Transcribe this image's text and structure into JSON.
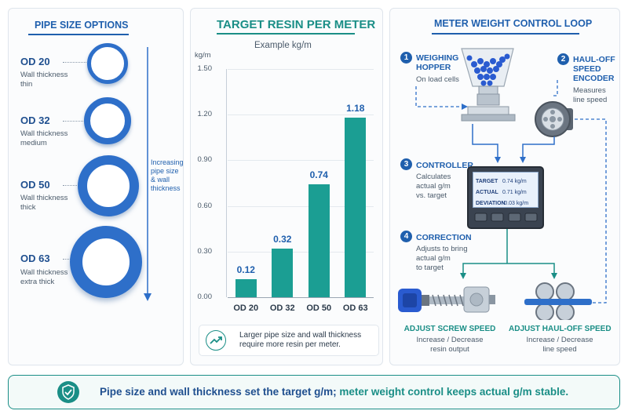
{
  "left_panel": {
    "title": "PIPE SIZE OPTIONS",
    "pipes": [
      {
        "od": "OD 20",
        "wall_label": "Wall thickness",
        "wall_value": "thin"
      },
      {
        "od": "OD 32",
        "wall_label": "Wall thickness",
        "wall_value": "medium"
      },
      {
        "od": "OD 50",
        "wall_label": "Wall thickness",
        "wall_value": "thick"
      },
      {
        "od": "OD 63",
        "wall_label": "Wall thickness",
        "wall_value": "extra thick"
      }
    ],
    "arrow_caption": [
      "Increasing",
      "pipe size",
      "& wall",
      "thickness"
    ]
  },
  "chart_panel": {
    "title": "TARGET RESIN PER METER",
    "note": [
      "Larger pipe size and wall thickness",
      "require more resin per meter."
    ],
    "icon": "trend-up-icon"
  },
  "chart_data": {
    "type": "bar",
    "title": "TARGET RESIN PER METER",
    "subtitle": "Example kg/m",
    "ylabel": "kg/m",
    "categories": [
      "OD 20",
      "OD 32",
      "OD 50",
      "OD 63"
    ],
    "values": [
      0.12,
      0.32,
      0.74,
      1.18
    ],
    "value_labels": [
      "0.12",
      "0.32",
      "0.74",
      "1.18"
    ],
    "yticks": [
      "0.00",
      "0.30",
      "0.60",
      "0.90",
      "1.20",
      "1.50"
    ],
    "ylim": [
      0,
      1.5
    ],
    "grid": true,
    "bar_color": "#1b9e93"
  },
  "loop_panel": {
    "title": "METER WEIGHT CONTROL LOOP",
    "steps": [
      {
        "n": "1",
        "title": [
          "WEIGHING",
          "HOPPER"
        ],
        "desc": [
          "On load cells"
        ]
      },
      {
        "n": "2",
        "title": [
          "HAUL-OFF",
          "SPEED",
          "ENCODER"
        ],
        "desc": [
          "Measures",
          "line speed"
        ]
      },
      {
        "n": "3",
        "title": [
          "CONTROLLER"
        ],
        "desc": [
          "Calculates",
          "actual g/m",
          "vs. target"
        ]
      },
      {
        "n": "4",
        "title": [
          "CORRECTION"
        ],
        "desc": [
          "Adjusts to bring",
          "actual g/m",
          "to target"
        ]
      }
    ],
    "screen": [
      {
        "k": "TARGET",
        "v": "0.74 kg/m"
      },
      {
        "k": "ACTUAL",
        "v": "0.71 kg/m"
      },
      {
        "k": "DEVIATION",
        "v": "-0.03 kg/m"
      }
    ],
    "outputs": [
      {
        "title": "ADJUST SCREW SPEED",
        "desc": [
          "Increase / Decrease",
          "resin output"
        ]
      },
      {
        "title": "ADJUST HAUL-OFF SPEED",
        "desc": [
          "Increase / Decrease",
          "line speed"
        ]
      }
    ]
  },
  "footer": {
    "part1": "Pipe size and wall thickness set the target g/m;",
    "part2": " meter weight control keeps actual g/m stable.",
    "icon": "shield-check-icon"
  },
  "colors": {
    "blue": "#1f5fad",
    "teal": "#1a8e86",
    "bar": "#1b9e93"
  }
}
